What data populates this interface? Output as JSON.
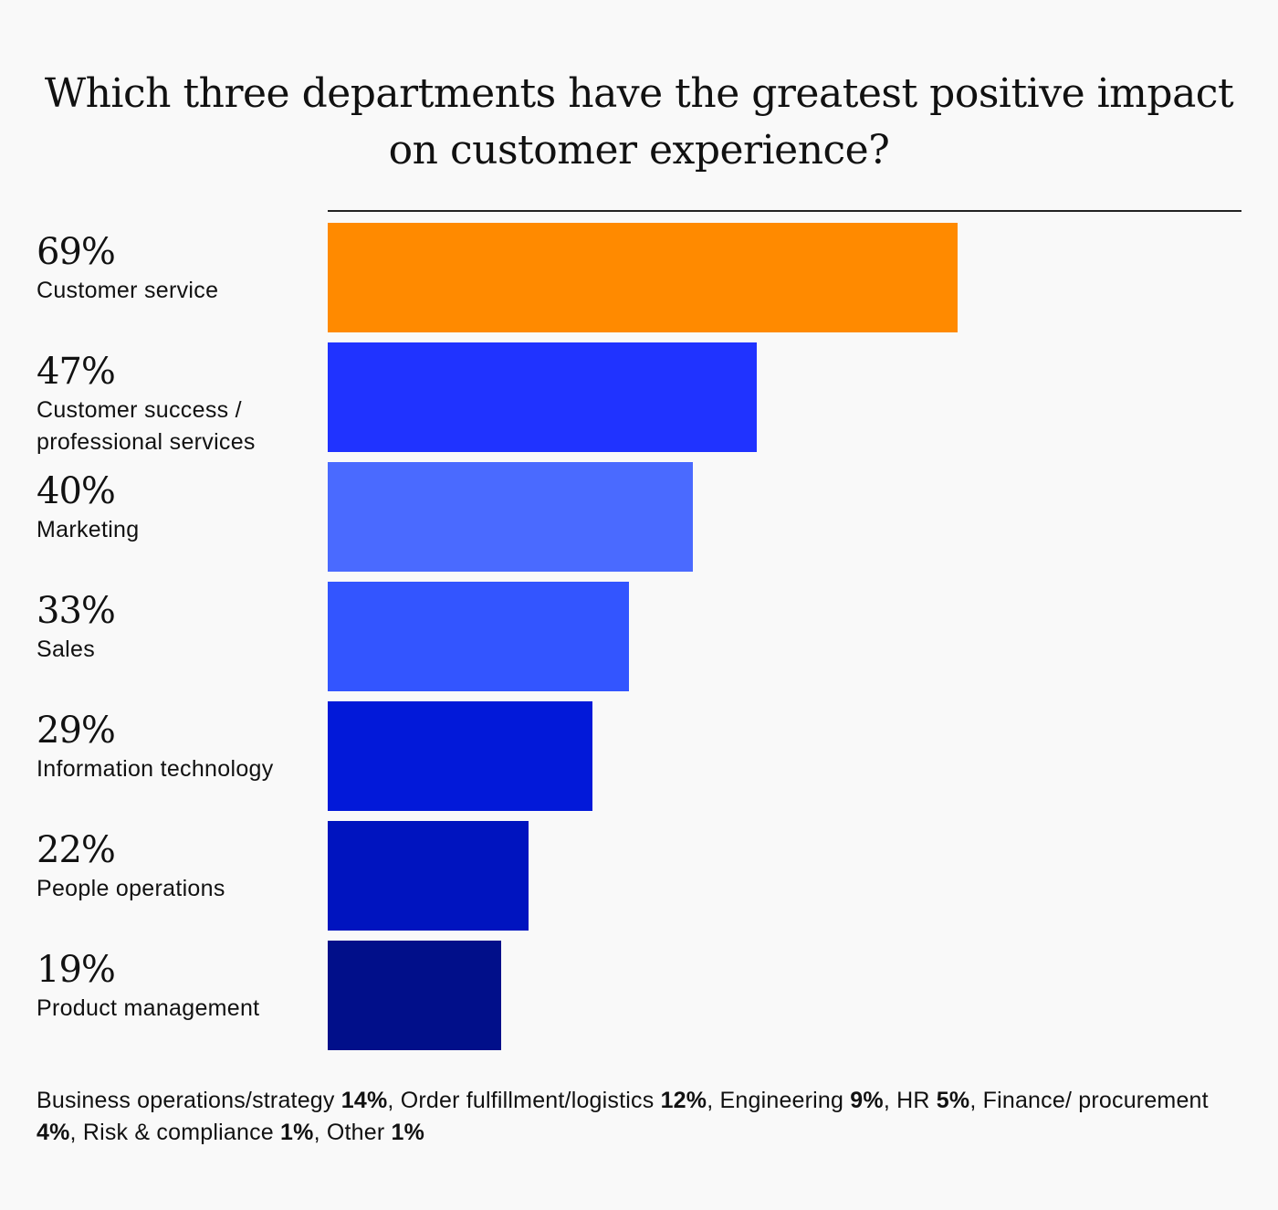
{
  "chart_data": {
    "type": "bar",
    "orientation": "horizontal",
    "title": "Which three departments have the greatest positive impact on customer experience?",
    "categories": [
      "Customer service",
      "Customer success / professional services",
      "Marketing",
      "Sales",
      "Information technology",
      "People operations",
      "Product management"
    ],
    "category_lines": [
      [
        "Customer service"
      ],
      [
        "Customer success /",
        "professional services"
      ],
      [
        "Marketing"
      ],
      [
        "Sales"
      ],
      [
        "Information technology"
      ],
      [
        "People operations"
      ],
      [
        "Product management"
      ]
    ],
    "values": [
      69,
      47,
      40,
      33,
      29,
      22,
      19
    ],
    "value_labels": [
      "69%",
      "47%",
      "40%",
      "33%",
      "29%",
      "22%",
      "19%"
    ],
    "colors": [
      "#ff8a00",
      "#2033ff",
      "#4a6aff",
      "#3355ff",
      "#0219d9",
      "#0014bf",
      "#010f8a"
    ],
    "xlim": [
      0,
      100
    ],
    "grid": false,
    "legend": "none",
    "baseline_rule": true,
    "footnote": [
      {
        "label": "Business operations/strategy",
        "value": "14%",
        "sep": ","
      },
      {
        "label": "Order fulfillment/logistics",
        "value": "12%",
        "sep": ","
      },
      {
        "label": "Engineering",
        "value": "9%",
        "sep": ","
      },
      {
        "label": "HR",
        "value": "5%",
        "sep": ","
      },
      {
        "label": "Finance/ procurement",
        "value": "4%",
        "sep": ","
      },
      {
        "label": "Risk & compliance",
        "value": "1%",
        "sep": ","
      },
      {
        "label": "Other",
        "value": "1%",
        "sep": ""
      }
    ]
  }
}
